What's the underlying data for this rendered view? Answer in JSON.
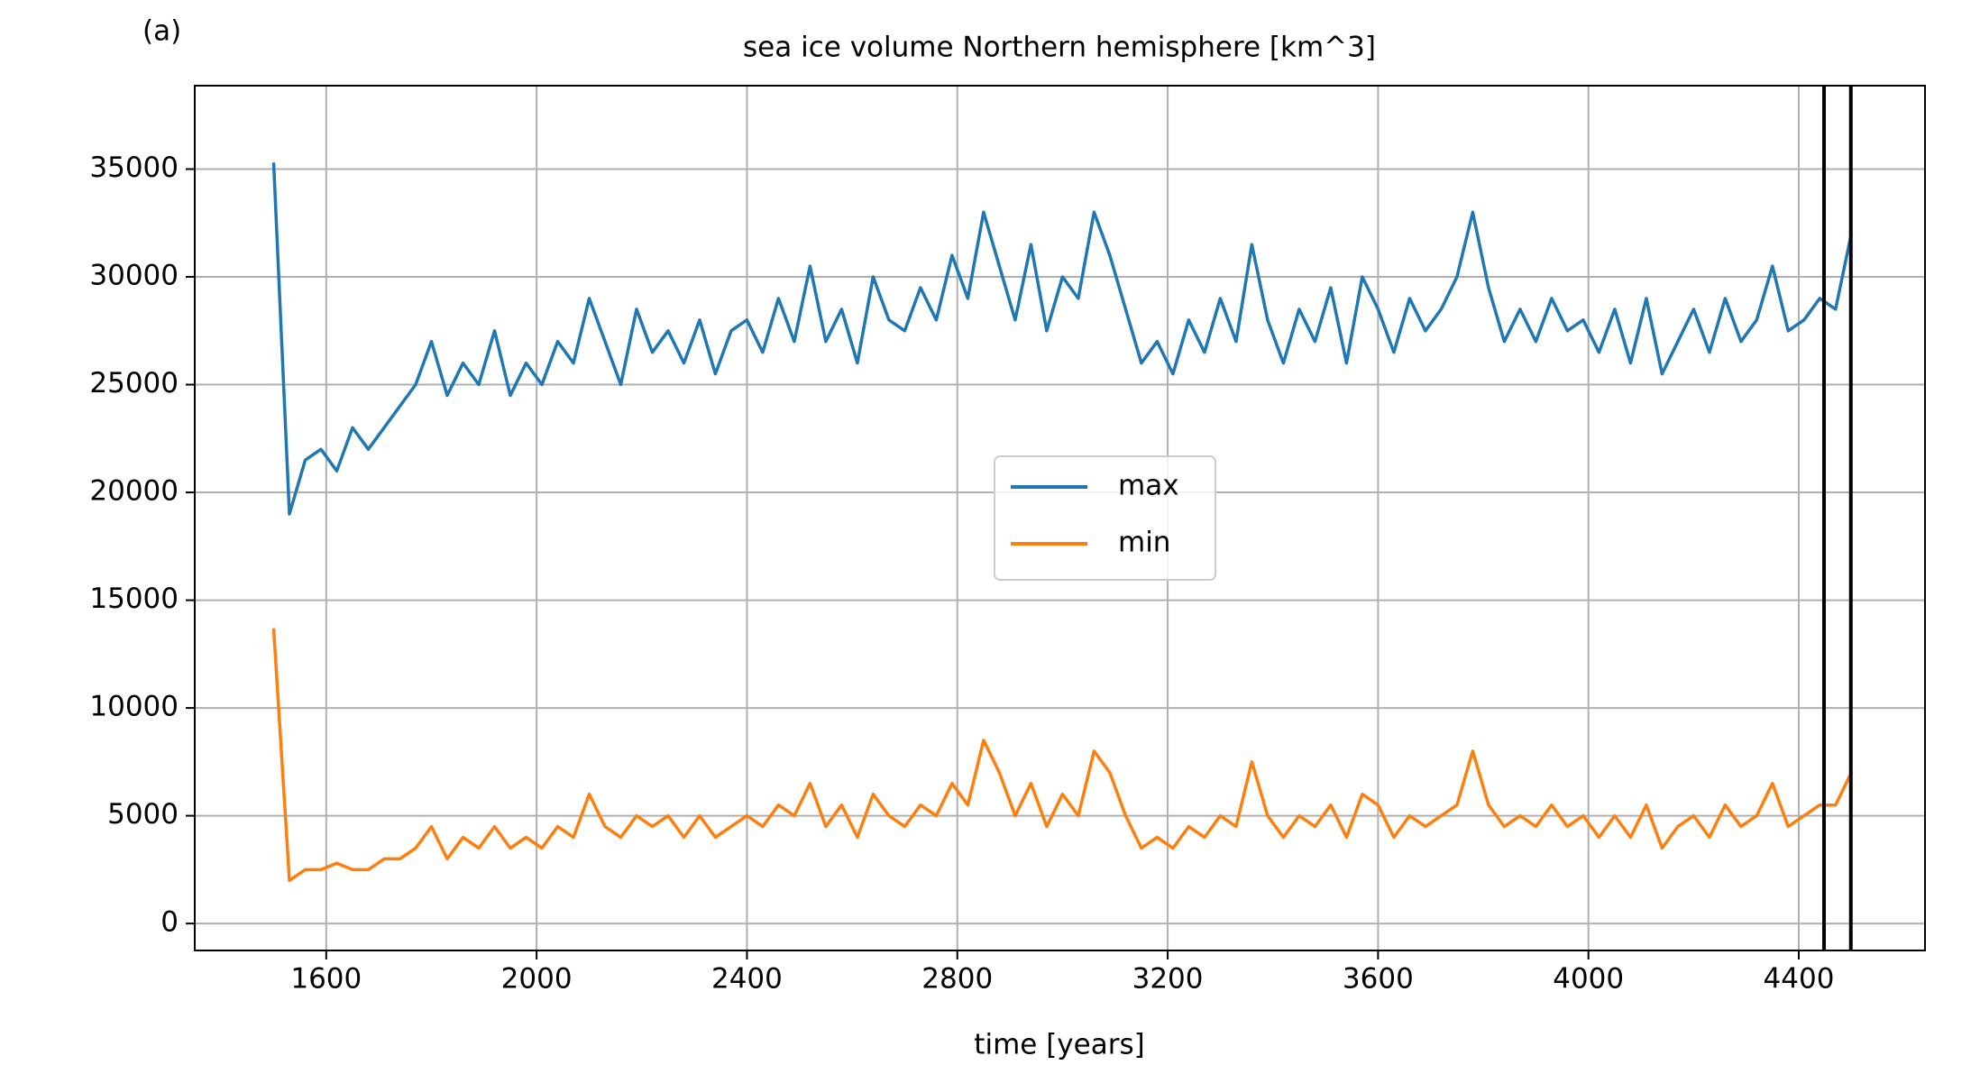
{
  "chart_data": {
    "type": "line",
    "panel_label": "(a)",
    "title": "sea ice volume Northern hemisphere [km^3]",
    "xlabel": "time [years]",
    "x": [
      1500,
      1530,
      1560,
      1590,
      1620,
      1650,
      1680,
      1710,
      1740,
      1770,
      1800,
      1830,
      1860,
      1890,
      1920,
      1950,
      1980,
      2010,
      2040,
      2070,
      2100,
      2130,
      2160,
      2190,
      2220,
      2250,
      2280,
      2310,
      2340,
      2370,
      2400,
      2430,
      2460,
      2490,
      2520,
      2550,
      2580,
      2610,
      2640,
      2670,
      2700,
      2730,
      2760,
      2790,
      2820,
      2850,
      2880,
      2910,
      2940,
      2970,
      3000,
      3030,
      3060,
      3090,
      3120,
      3150,
      3180,
      3210,
      3240,
      3270,
      3300,
      3330,
      3360,
      3390,
      3420,
      3450,
      3480,
      3510,
      3540,
      3570,
      3600,
      3630,
      3660,
      3690,
      3720,
      3750,
      3780,
      3810,
      3840,
      3870,
      3900,
      3930,
      3960,
      3990,
      4020,
      4050,
      4080,
      4110,
      4140,
      4170,
      4200,
      4230,
      4260,
      4290,
      4320,
      4350,
      4380,
      4410,
      4440,
      4470,
      4500
    ],
    "series": [
      {
        "name": "max",
        "color": "#1f77b4",
        "values": [
          35300,
          19000,
          21500,
          22000,
          21000,
          23000,
          22000,
          23000,
          24000,
          25000,
          27000,
          24500,
          26000,
          25000,
          27500,
          24500,
          26000,
          25000,
          27000,
          26000,
          29000,
          27000,
          25000,
          28500,
          26500,
          27500,
          26000,
          28000,
          25500,
          27500,
          28000,
          26500,
          29000,
          27000,
          30500,
          27000,
          28500,
          26000,
          30000,
          28000,
          27500,
          29500,
          28000,
          31000,
          29000,
          33000,
          30500,
          28000,
          31500,
          27500,
          30000,
          29000,
          33000,
          31000,
          28500,
          26000,
          27000,
          25500,
          28000,
          26500,
          29000,
          27000,
          31500,
          28000,
          26000,
          28500,
          27000,
          29500,
          26000,
          30000,
          28500,
          26500,
          29000,
          27500,
          28500,
          30000,
          33000,
          29500,
          27000,
          28500,
          27000,
          29000,
          27500,
          28000,
          26500,
          28500,
          26000,
          29000,
          25500,
          27000,
          28500,
          26500,
          29000,
          27000,
          28000,
          30500,
          27500,
          28000,
          29000,
          28500,
          32000
        ]
      },
      {
        "name": "min",
        "color": "#ff7f0e",
        "values": [
          13700,
          2000,
          2500,
          2500,
          2800,
          2500,
          2500,
          3000,
          3000,
          3500,
          4500,
          3000,
          4000,
          3500,
          4500,
          3500,
          4000,
          3500,
          4500,
          4000,
          6000,
          4500,
          4000,
          5000,
          4500,
          5000,
          4000,
          5000,
          4000,
          4500,
          5000,
          4500,
          5500,
          5000,
          6500,
          4500,
          5500,
          4000,
          6000,
          5000,
          4500,
          5500,
          5000,
          6500,
          5500,
          8500,
          7000,
          5000,
          6500,
          4500,
          6000,
          5000,
          8000,
          7000,
          5000,
          3500,
          4000,
          3500,
          4500,
          4000,
          5000,
          4500,
          7500,
          5000,
          4000,
          5000,
          4500,
          5500,
          4000,
          6000,
          5500,
          4000,
          5000,
          4500,
          5000,
          5500,
          8000,
          5500,
          4500,
          5000,
          4500,
          5500,
          4500,
          5000,
          4000,
          5000,
          4000,
          5500,
          3500,
          4500,
          5000,
          4000,
          5500,
          4500,
          5000,
          6500,
          4500,
          5000,
          5500,
          5500,
          7000
        ]
      }
    ],
    "vlines": [
      4448,
      4499
    ],
    "vline_color": "#000000",
    "xlim": [
      1350,
      4640
    ],
    "ylim": [
      -1250,
      38870
    ],
    "xticks": [
      1600,
      2000,
      2400,
      2800,
      3200,
      3600,
      4000,
      4400
    ],
    "yticks": [
      0,
      5000,
      10000,
      15000,
      20000,
      25000,
      30000,
      35000
    ],
    "grid": true,
    "legend": "center"
  }
}
